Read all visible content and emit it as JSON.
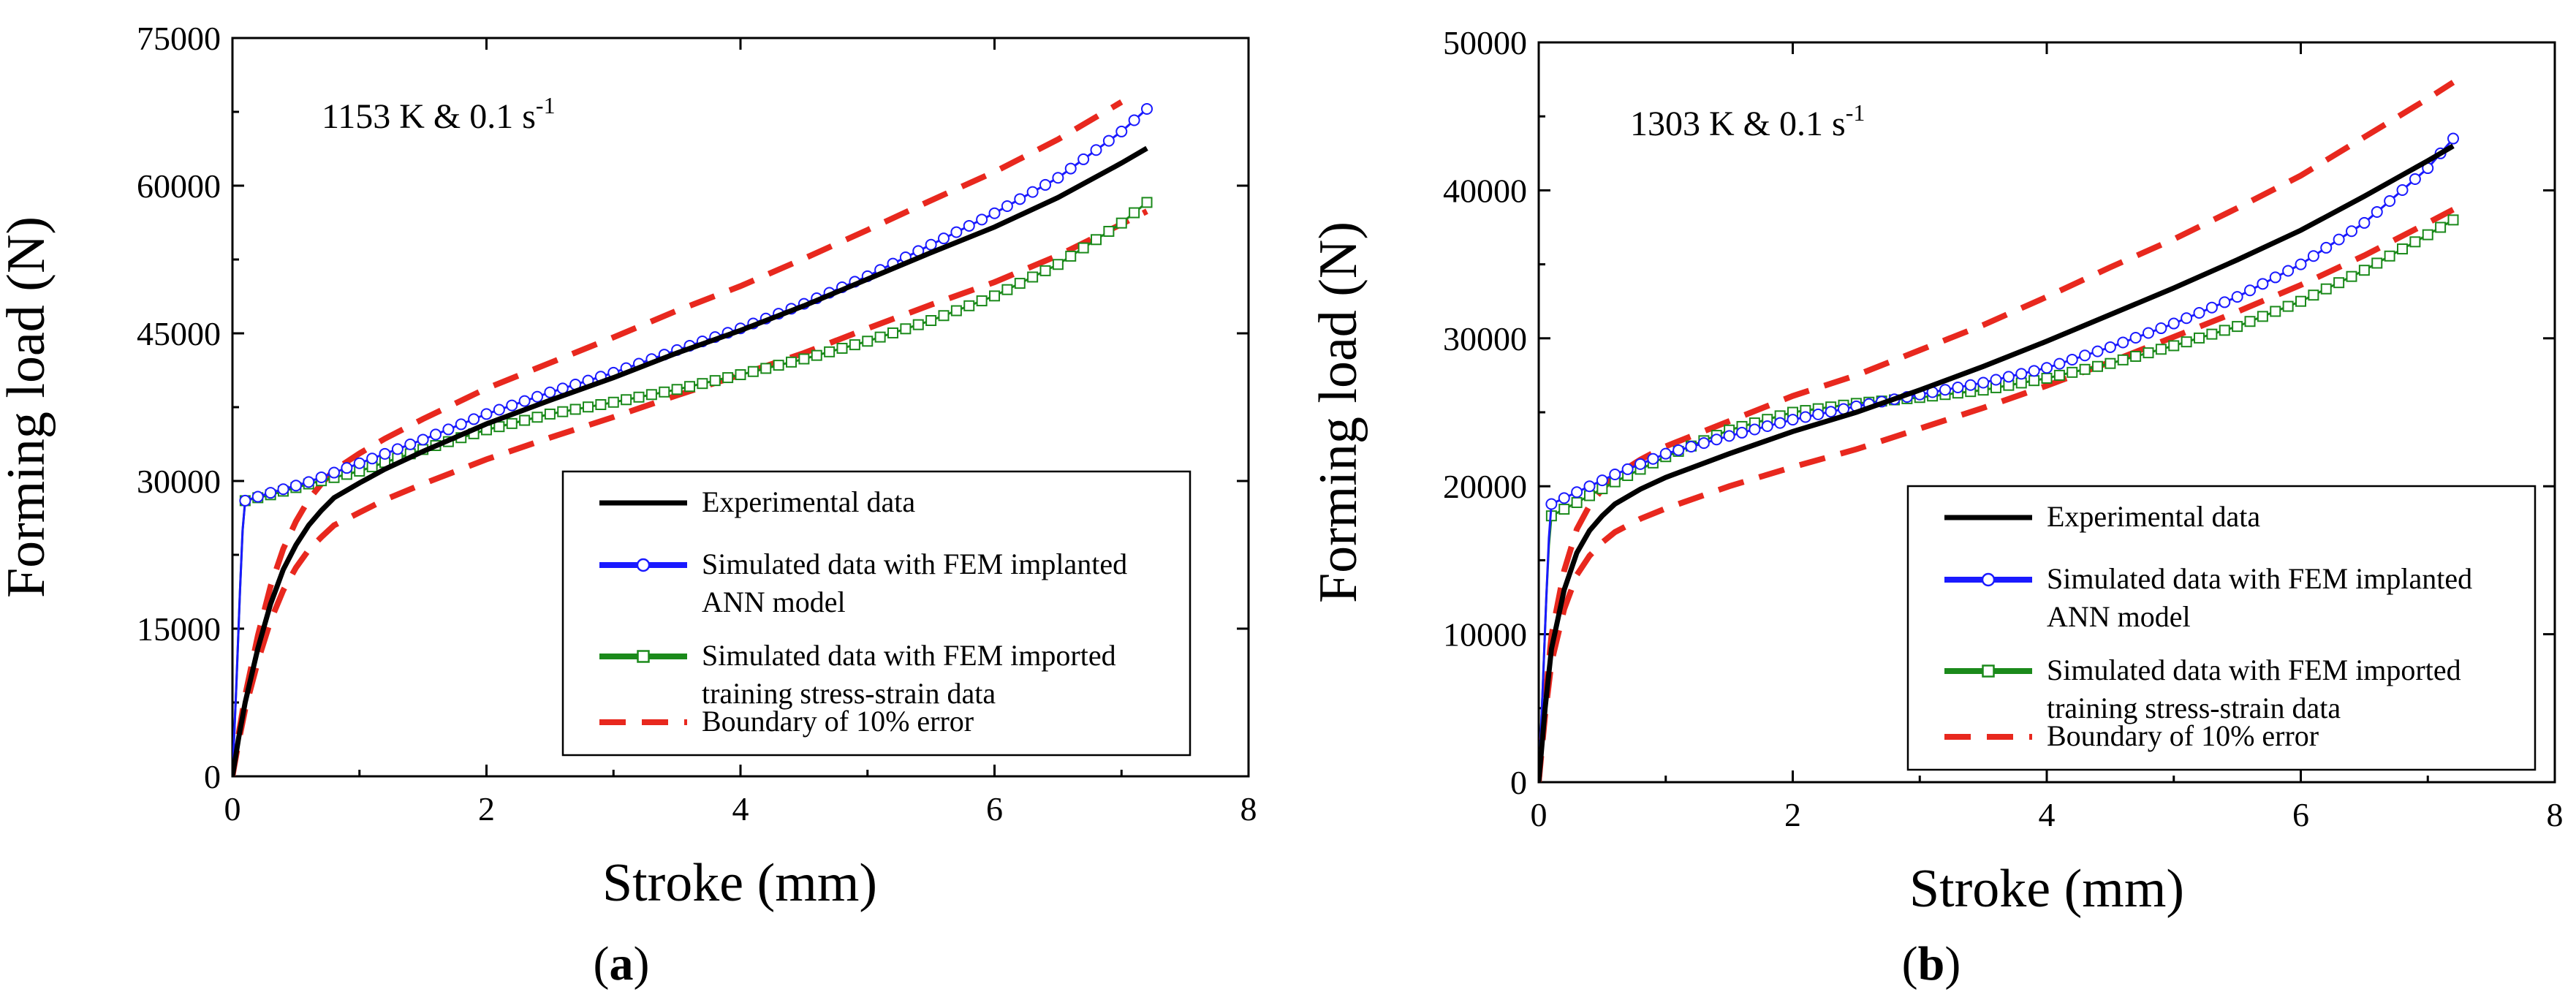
{
  "chart_data": [
    {
      "panel_label": "a",
      "type": "line",
      "annotation": {
        "text": "1153 K & 0.1 s",
        "sup": "-1"
      },
      "xlabel": "Stroke (mm)",
      "ylabel": "Forming load (N)",
      "xlim": [
        0,
        8
      ],
      "ylim": [
        0,
        75000
      ],
      "xticks": [
        "0",
        "2",
        "4",
        "6",
        "8"
      ],
      "yticks": [
        "0",
        "15000",
        "30000",
        "45000",
        "60000",
        "75000"
      ],
      "grid": false,
      "legend_position": "bottom-right",
      "legend": [
        {
          "label": "Experimental data",
          "series": 0
        },
        {
          "label": "Simulated data with FEM implanted",
          "label2": "ANN model",
          "series": 1
        },
        {
          "label": "Simulated data with FEM imported",
          "label2": "training stress-strain data",
          "series": 2
        },
        {
          "label": "Boundary of 10% error",
          "series": 3
        }
      ],
      "series": [
        {
          "style": "experimental",
          "color": "#000000",
          "x": [
            0,
            0.05,
            0.1,
            0.2,
            0.3,
            0.4,
            0.5,
            0.6,
            0.7,
            0.8,
            1.0,
            1.2,
            1.5,
            2.0,
            2.5,
            3.0,
            3.5,
            4.0,
            4.5,
            5.0,
            5.5,
            6.0,
            6.5,
            7.0,
            7.2
          ],
          "y": [
            0,
            4000,
            7500,
            13000,
            17500,
            21000,
            23500,
            25500,
            27000,
            28300,
            29800,
            31200,
            33000,
            35800,
            38200,
            40500,
            43000,
            45300,
            47800,
            50500,
            53200,
            55800,
            58800,
            62300,
            63800
          ]
        },
        {
          "style": "circles",
          "color": "#1a1aff",
          "x": [
            0,
            0.03,
            0.06,
            0.08,
            0.1,
            0.3,
            0.6,
            1.0,
            1.5,
            2.0,
            2.5,
            3.0,
            3.5,
            4.0,
            4.5,
            5.0,
            5.5,
            6.0,
            6.5,
            7.0,
            7.2
          ],
          "y": [
            0,
            9000,
            19000,
            25000,
            28000,
            28800,
            29900,
            31800,
            34200,
            36800,
            39000,
            41000,
            43300,
            45500,
            48000,
            50800,
            54000,
            57200,
            60800,
            65500,
            67800
          ]
        },
        {
          "style": "squares",
          "color": "#1b8a1b",
          "x": [
            0,
            0.03,
            0.06,
            0.08,
            0.1,
            0.3,
            0.6,
            1.0,
            1.5,
            2.0,
            2.5,
            3.0,
            3.5,
            4.0,
            4.5,
            5.0,
            5.5,
            6.0,
            6.5,
            7.0,
            7.2
          ],
          "y": [
            0,
            9000,
            19000,
            25000,
            28000,
            28600,
            29700,
            31000,
            33200,
            35200,
            36800,
            38000,
            39300,
            40800,
            42400,
            44200,
            46300,
            48800,
            52000,
            56200,
            58300
          ]
        },
        {
          "style": "dashed",
          "color": "#e8281e",
          "x": [
            0,
            0.05,
            0.1,
            0.2,
            0.3,
            0.4,
            0.5,
            0.6,
            0.7,
            0.8,
            1.0,
            1.2,
            1.5,
            2.0,
            2.5,
            3.0,
            3.5,
            4.0,
            4.5,
            5.0,
            5.5,
            6.0,
            6.5,
            7.0
          ],
          "y": [
            0,
            4400,
            8200,
            14300,
            19300,
            23100,
            25900,
            28100,
            29700,
            31100,
            32800,
            34300,
            36300,
            39400,
            42000,
            44600,
            47300,
            49800,
            52600,
            55500,
            58500,
            61400,
            64700,
            68500
          ]
        },
        {
          "style": "dashed",
          "color": "#e8281e",
          "x": [
            0,
            0.05,
            0.1,
            0.2,
            0.3,
            0.4,
            0.5,
            0.6,
            0.7,
            0.8,
            1.0,
            1.2,
            1.5,
            2.0,
            2.5,
            3.0,
            3.5,
            4.0,
            4.5,
            5.0,
            5.5,
            6.0,
            6.5,
            7.0,
            7.2
          ],
          "y": [
            0,
            3600,
            6800,
            11700,
            15800,
            18900,
            21200,
            23000,
            24300,
            25500,
            26800,
            28100,
            29700,
            32200,
            34400,
            36500,
            38700,
            40800,
            43000,
            45500,
            47900,
            50200,
            52900,
            56100,
            57400
          ]
        }
      ]
    },
    {
      "panel_label": "b",
      "type": "line",
      "annotation": {
        "text": "1303 K & 0.1 s",
        "sup": "-1"
      },
      "xlabel": "Stroke (mm)",
      "ylabel": "Forming load (N)",
      "xlim": [
        0,
        8
      ],
      "ylim": [
        0,
        50000
      ],
      "xticks": [
        "0",
        "2",
        "4",
        "6",
        "8"
      ],
      "yticks": [
        "0",
        "10000",
        "20000",
        "30000",
        "40000",
        "50000"
      ],
      "grid": false,
      "legend_position": "bottom-right",
      "legend": [
        {
          "label": "Experimental data",
          "series": 0
        },
        {
          "label": "Simulated data with FEM implanted",
          "label2": "ANN model",
          "series": 1
        },
        {
          "label": "Simulated data with FEM imported",
          "label2": "training stress-strain data",
          "series": 2
        },
        {
          "label": "Boundary of 10% error",
          "series": 3
        }
      ],
      "series": [
        {
          "style": "experimental",
          "color": "#000000",
          "x": [
            0,
            0.05,
            0.1,
            0.2,
            0.3,
            0.4,
            0.5,
            0.6,
            0.8,
            1.0,
            1.5,
            2.0,
            2.5,
            3.0,
            3.5,
            4.0,
            4.5,
            5.0,
            5.5,
            6.0,
            6.5,
            7.0,
            7.2
          ],
          "y": [
            0,
            5000,
            9000,
            13000,
            15500,
            17000,
            18000,
            18800,
            19800,
            20600,
            22200,
            23700,
            25000,
            26500,
            28100,
            29800,
            31600,
            33400,
            35300,
            37300,
            39600,
            42000,
            43000
          ]
        },
        {
          "style": "circles",
          "color": "#1a1aff",
          "x": [
            0,
            0.03,
            0.06,
            0.08,
            0.1,
            0.3,
            0.6,
            1.0,
            1.5,
            2.0,
            2.5,
            3.0,
            3.5,
            4.0,
            4.5,
            5.0,
            5.5,
            6.0,
            6.5,
            7.0,
            7.2
          ],
          "y": [
            0,
            6000,
            12500,
            16500,
            18800,
            19600,
            20800,
            22200,
            23400,
            24500,
            25400,
            26200,
            27000,
            28000,
            29400,
            31000,
            32800,
            35000,
            37800,
            41500,
            43500
          ]
        },
        {
          "style": "squares",
          "color": "#1b8a1b",
          "x": [
            0,
            0.03,
            0.06,
            0.08,
            0.1,
            0.3,
            0.6,
            1.0,
            1.5,
            2.0,
            2.5,
            3.0,
            3.5,
            4.0,
            4.5,
            5.0,
            5.5,
            6.0,
            6.5,
            7.0,
            7.2
          ],
          "y": [
            0,
            6000,
            12500,
            16000,
            18000,
            18900,
            20300,
            22000,
            23800,
            25000,
            25600,
            26000,
            26500,
            27300,
            28300,
            29500,
            30800,
            32500,
            34600,
            37000,
            38000
          ]
        },
        {
          "style": "dashed",
          "color": "#e8281e",
          "x": [
            0,
            0.05,
            0.1,
            0.2,
            0.3,
            0.4,
            0.5,
            0.6,
            0.8,
            1.0,
            1.5,
            2.0,
            2.5,
            3.0,
            3.5,
            4.0,
            4.5,
            5.0,
            5.5,
            6.0,
            6.5,
            7.0,
            7.2
          ],
          "y": [
            0,
            5500,
            9900,
            14300,
            17100,
            18700,
            19800,
            20700,
            21800,
            22700,
            24400,
            26100,
            27500,
            29200,
            30900,
            32800,
            34800,
            36700,
            38800,
            41000,
            43600,
            46200,
            47300
          ]
        },
        {
          "style": "dashed",
          "color": "#e8281e",
          "x": [
            0,
            0.05,
            0.1,
            0.2,
            0.3,
            0.4,
            0.5,
            0.6,
            0.8,
            1.0,
            1.5,
            2.0,
            2.5,
            3.0,
            3.5,
            4.0,
            4.5,
            5.0,
            5.5,
            6.0,
            6.5,
            7.0,
            7.2
          ],
          "y": [
            0,
            4500,
            8100,
            11700,
            14000,
            15300,
            16200,
            16900,
            17800,
            18500,
            20000,
            21300,
            22500,
            23900,
            25300,
            26800,
            28400,
            30100,
            31800,
            33600,
            35600,
            37800,
            38700
          ]
        }
      ]
    }
  ]
}
